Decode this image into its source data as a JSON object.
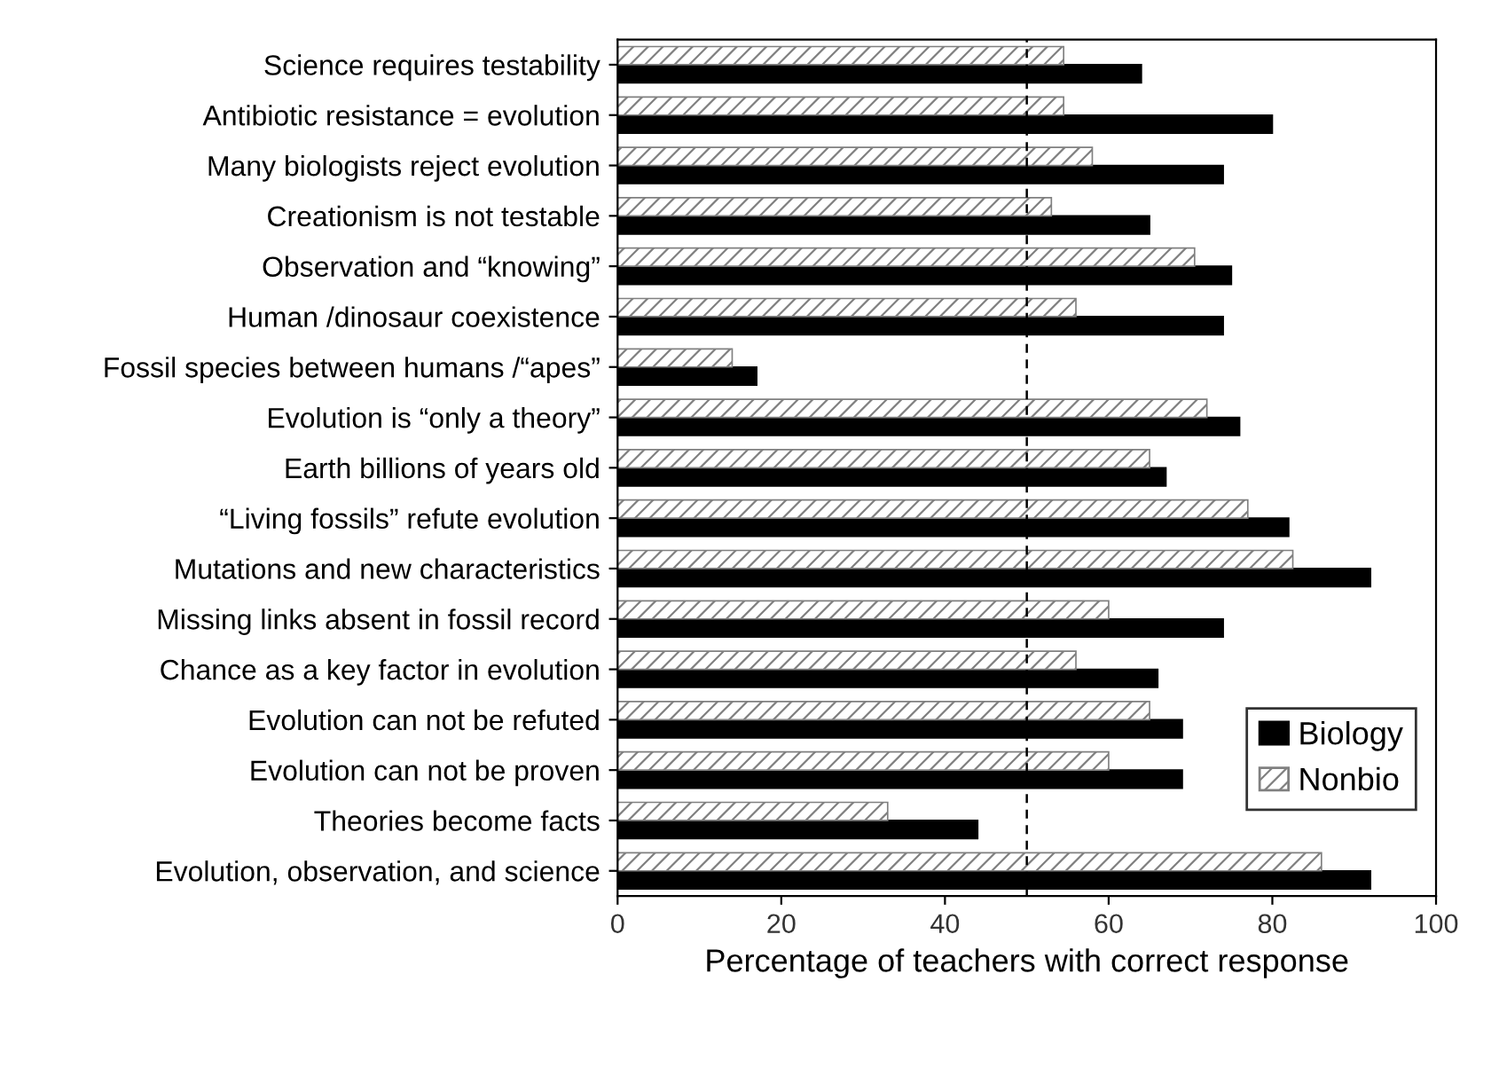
{
  "chart_data": {
    "type": "bar",
    "orientation": "horizontal",
    "xlabel": "Percentage of teachers with correct response",
    "categories": [
      "Science requires testability",
      "Antibiotic resistance = evolution",
      "Many biologists reject evolution",
      "Creationism is not testable",
      "Observation and “knowing”",
      "Human /dinosaur coexistence",
      "Fossil species between humans /“apes”",
      "Evolution is “only a theory”",
      "Earth billions of years old",
      "“Living fossils” refute evolution",
      "Mutations and new characteristics",
      "Missing links absent in fossil record",
      "Chance as a key factor in evolution",
      "Evolution can not be refuted",
      "Evolution can not be proven",
      "Theories become facts",
      "Evolution, observation, and science"
    ],
    "series": [
      {
        "name": "Biology",
        "color": "#000000",
        "values": [
          64,
          80,
          74,
          65,
          75,
          74,
          17,
          76,
          67,
          82,
          92,
          74,
          66,
          69,
          69,
          44,
          92
        ]
      },
      {
        "name": "Nonbio",
        "color": "#808080",
        "values": [
          54.5,
          54.5,
          58,
          53,
          70.5,
          56,
          14,
          72,
          65,
          77,
          82.5,
          60,
          56,
          65,
          60,
          33,
          86
        ]
      }
    ],
    "xlim": [
      0,
      100
    ],
    "xticks": [
      0,
      20,
      40,
      60,
      80,
      100
    ],
    "ref_lines": [
      {
        "axis": "x",
        "value": 50,
        "line_style": "dashed",
        "color": "#000000"
      }
    ],
    "legend": "right",
    "grid": false
  }
}
